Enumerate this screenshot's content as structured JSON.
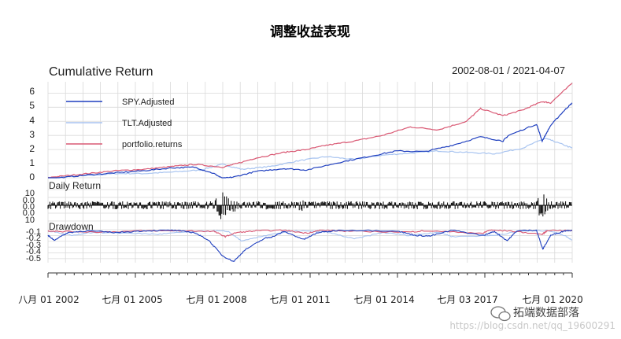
{
  "chart_data": {
    "type": "line",
    "title": "调整收益表现",
    "date_range": "2002-08-01 / 2021-04-07",
    "x_tick_labels": [
      "八月 01 2002",
      "七月 01 2005",
      "七月 01 2008",
      "七月 01 2011",
      "七月 01 2014",
      "七月 03 2017",
      "七月 01 2020"
    ],
    "grid": true,
    "legend_position": "top-left",
    "panels": [
      {
        "name": "cumulative",
        "title": "Cumulative Return",
        "ylim": [
          0,
          6.8
        ],
        "yticks": [
          "0",
          "1",
          "2",
          "3",
          "4",
          "5",
          "6"
        ],
        "series": [
          {
            "name": "SPY.Adjusted",
            "color": "#1f3fbf",
            "x": [
              2002.58,
              2003.0,
              2004.0,
              2005.0,
              2006.0,
              2007.0,
              2007.8,
              2008.5,
              2008.8,
              2009.2,
              2010.0,
              2011.0,
              2011.8,
              2013.0,
              2014.0,
              2015.0,
              2016.0,
              2017.0,
              2018.0,
              2018.8,
              2019.0,
              2020.0,
              2020.2,
              2020.5,
              2021.0,
              2021.27
            ],
            "y": [
              -0.05,
              0.0,
              0.2,
              0.35,
              0.5,
              0.7,
              0.75,
              0.3,
              -0.05,
              0.05,
              0.45,
              0.65,
              0.55,
              1.1,
              1.5,
              1.9,
              1.85,
              2.3,
              2.9,
              2.6,
              3.0,
              3.8,
              2.6,
              3.7,
              4.8,
              5.3
            ]
          },
          {
            "name": "TLT.Adjusted",
            "color": "#a8c4f0",
            "x": [
              2002.58,
              2003.0,
              2004.0,
              2005.0,
              2006.0,
              2007.0,
              2008.0,
              2008.8,
              2009.5,
              2010.5,
              2011.5,
              2012.5,
              2013.5,
              2014.5,
              2015.5,
              2016.5,
              2017.5,
              2018.5,
              2019.5,
              2020.3,
              2020.6,
              2021.27
            ],
            "y": [
              0.0,
              0.05,
              0.15,
              0.3,
              0.3,
              0.4,
              0.55,
              0.95,
              0.6,
              0.8,
              1.2,
              1.5,
              1.3,
              1.6,
              1.75,
              1.9,
              1.8,
              1.7,
              2.1,
              2.8,
              2.6,
              2.1
            ]
          },
          {
            "name": "portfolio.returns",
            "color": "#d95873",
            "x": [
              2002.58,
              2003.0,
              2004.0,
              2005.0,
              2006.0,
              2007.0,
              2007.8,
              2008.8,
              2009.3,
              2010.0,
              2011.0,
              2011.8,
              2012.5,
              2013.5,
              2014.5,
              2015.5,
              2016.5,
              2017.5,
              2018.0,
              2018.8,
              2019.5,
              2020.2,
              2020.5,
              2021.27
            ],
            "y": [
              0.0,
              0.1,
              0.3,
              0.5,
              0.6,
              0.8,
              0.95,
              0.75,
              1.0,
              1.4,
              1.8,
              2.0,
              2.3,
              2.6,
              3.0,
              3.6,
              3.4,
              4.0,
              4.9,
              4.4,
              4.8,
              5.4,
              5.3,
              6.7
            ]
          }
        ]
      },
      {
        "name": "daily",
        "title": "Daily Return",
        "ylim": [
          -10,
          10
        ],
        "yticks": [
          "10",
          "0.0",
          "0.0",
          "0.0",
          "10"
        ],
        "bursts": [
          {
            "x": 2008.75,
            "amp": 10
          },
          {
            "x": 2008.9,
            "amp": 7
          },
          {
            "x": 2009.2,
            "amp": 5
          },
          {
            "x": 2010.4,
            "amp": 3
          },
          {
            "x": 2011.6,
            "amp": 4
          },
          {
            "x": 2015.6,
            "amp": 2.5
          },
          {
            "x": 2018.1,
            "amp": 3
          },
          {
            "x": 2020.2,
            "amp": 10
          }
        ]
      },
      {
        "name": "drawdown",
        "title": "Drawdown",
        "ylim": [
          -0.57,
          0.0
        ],
        "yticks": [
          "-0.1",
          "-0.2",
          "-0.3",
          "-0.4",
          "-0.5"
        ],
        "series": [
          {
            "name": "SPY.Adjusted",
            "color": "#1f3fbf",
            "x": [
              2002.58,
              2002.8,
              2003.3,
              2004.0,
              2005.0,
              2006.0,
              2007.0,
              2007.8,
              2008.3,
              2008.8,
              2009.2,
              2009.6,
              2010.3,
              2010.6,
              2011.0,
              2011.7,
              2012.2,
              2013.0,
              2015.0,
              2015.7,
              2016.2,
              2017.0,
              2018.1,
              2018.5,
              2018.95,
              2019.3,
              2020.0,
              2020.22,
              2020.5,
              2021.0,
              2021.27
            ],
            "y": [
              -0.1,
              -0.18,
              -0.05,
              -0.02,
              -0.05,
              -0.02,
              -0.01,
              -0.05,
              -0.18,
              -0.45,
              -0.55,
              -0.35,
              -0.15,
              -0.12,
              -0.03,
              -0.17,
              -0.05,
              -0.01,
              -0.02,
              -0.1,
              -0.11,
              -0.01,
              -0.1,
              -0.03,
              -0.19,
              -0.02,
              -0.01,
              -0.34,
              -0.1,
              -0.02,
              -0.01
            ]
          },
          {
            "name": "TLT.Adjusted",
            "color": "#a8c4f0",
            "x": [
              2002.58,
              2003.5,
              2004.0,
              2005.5,
              2006.5,
              2007.5,
              2008.5,
              2009.0,
              2009.5,
              2010.5,
              2011.5,
              2012.5,
              2013.5,
              2014.5,
              2015.5,
              2016.5,
              2017.0,
              2018.5,
              2019.5,
              2020.5,
              2021.0,
              2021.27
            ],
            "y": [
              -0.02,
              -0.1,
              -0.05,
              -0.06,
              -0.08,
              -0.04,
              -0.02,
              -0.03,
              -0.2,
              -0.08,
              -0.02,
              -0.04,
              -0.16,
              -0.05,
              -0.1,
              -0.04,
              -0.12,
              -0.1,
              -0.02,
              -0.02,
              -0.1,
              -0.18
            ]
          },
          {
            "name": "portfolio.returns",
            "color": "#d95873",
            "x": [
              2002.58,
              2003.0,
              2004.5,
              2006.0,
              2007.5,
              2008.5,
              2008.9,
              2009.3,
              2010.0,
              2011.0,
              2011.8,
              2012.3,
              2013.5,
              2015.5,
              2016.0,
              2018.1,
              2018.3,
              2019.0,
              2020.2,
              2020.4,
              2021.27
            ],
            "y": [
              -0.02,
              -0.03,
              -0.04,
              -0.02,
              -0.02,
              -0.03,
              -0.12,
              -0.05,
              -0.02,
              -0.01,
              -0.06,
              -0.01,
              -0.03,
              -0.04,
              -0.02,
              -0.06,
              -0.01,
              -0.02,
              -0.08,
              -0.01,
              -0.02
            ]
          }
        ]
      }
    ]
  },
  "watermark": {
    "url": "https://blog.csdn.net/qq_19600291",
    "brand": "拓端数据部落",
    "icon": "wechat-icon"
  }
}
